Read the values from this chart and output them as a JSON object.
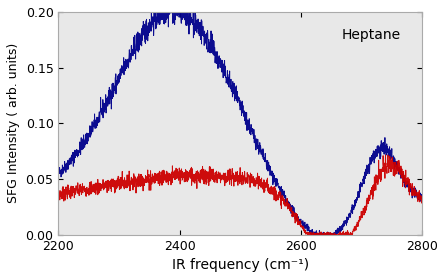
{
  "title": "Heptane",
  "xlabel": "IR frequency (cm⁻¹)",
  "ylabel": "SFG Intensity ( arb. units)",
  "xlim": [
    2200,
    2800
  ],
  "ylim": [
    0.0,
    0.2
  ],
  "yticks": [
    0.0,
    0.05,
    0.1,
    0.15,
    0.2
  ],
  "xticks": [
    2200,
    2400,
    2600,
    2800
  ],
  "blue_color": "#00008B",
  "red_color": "#CC0000",
  "background_color": "#e8e8e8"
}
